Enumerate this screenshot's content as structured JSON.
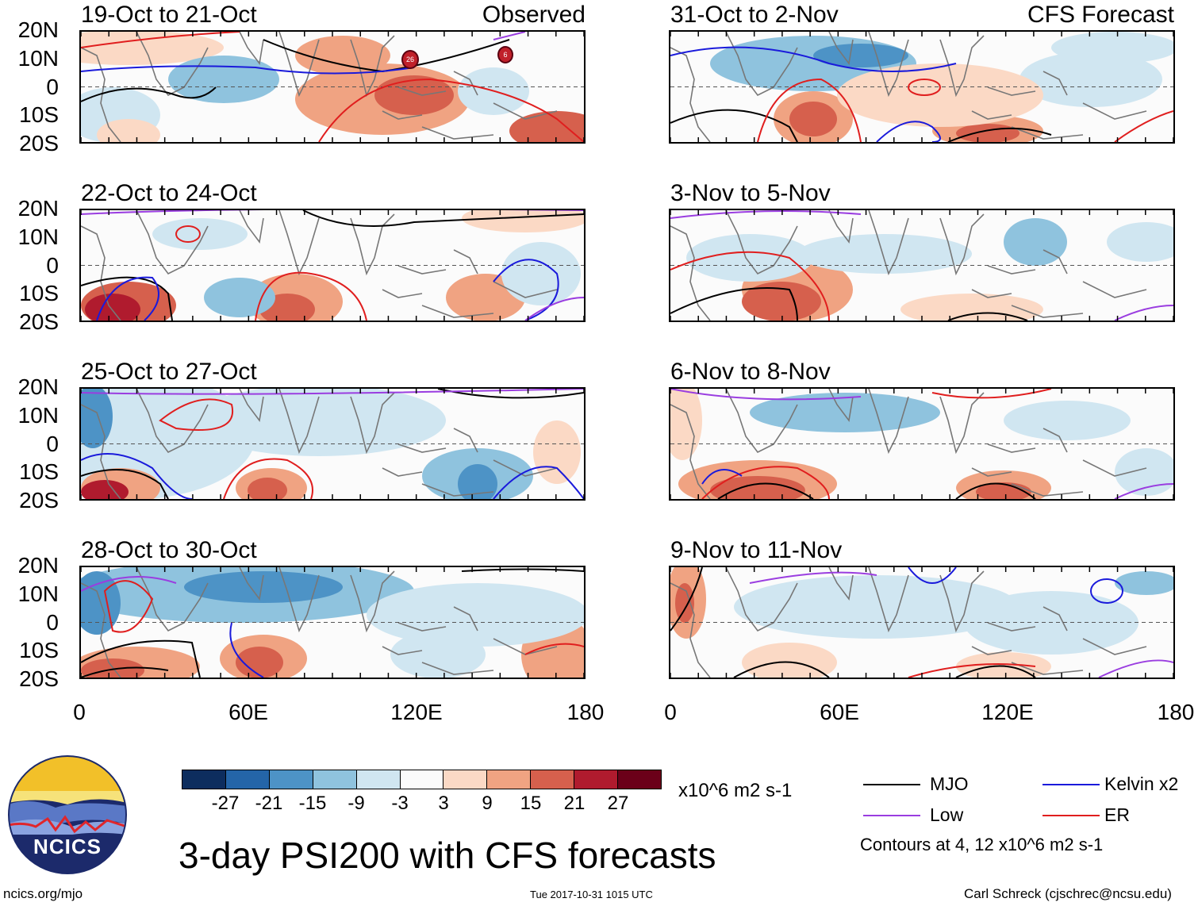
{
  "header": {
    "left_tag": "Observed",
    "right_tag": "CFS Forecast"
  },
  "panels": [
    {
      "title": "19-Oct to 21-Oct",
      "source": "observed",
      "tint": "mixed-red"
    },
    {
      "title": "22-Oct to 24-Oct",
      "source": "observed",
      "tint": "mixed-light"
    },
    {
      "title": "25-Oct to 27-Oct",
      "source": "observed",
      "tint": "blue"
    },
    {
      "title": "28-Oct to 30-Oct",
      "source": "observed",
      "tint": "blue-north"
    },
    {
      "title": "31-Oct to 2-Nov",
      "source": "forecast",
      "tint": "mixed-blue"
    },
    {
      "title": "3-Nov to 5-Nov",
      "source": "forecast",
      "tint": "mixed-light"
    },
    {
      "title": "6-Nov to 8-Nov",
      "source": "forecast",
      "tint": "red-south"
    },
    {
      "title": "9-Nov to 11-Nov",
      "source": "forecast",
      "tint": "light"
    }
  ],
  "y_axis": {
    "labels": [
      "20N",
      "10N",
      "0",
      "10S",
      "20S"
    ],
    "lat_values": [
      20,
      10,
      0,
      -10,
      -20
    ]
  },
  "x_axis": {
    "labels": [
      "0",
      "60E",
      "120E",
      "180"
    ],
    "lon_values": [
      0,
      60,
      120,
      180
    ]
  },
  "colorbar": {
    "colors": [
      "#0d2d5e",
      "#2465a8",
      "#4d93c6",
      "#8fc3de",
      "#d0e6f1",
      "#fbfbfb",
      "#fbd9c5",
      "#f0a382",
      "#d6604d",
      "#b01b2e",
      "#6b0019"
    ],
    "tick_labels": [
      "-27",
      "-21",
      "-15",
      "-9",
      "-3",
      "3",
      "9",
      "15",
      "21",
      "27"
    ],
    "units": "x10^6 m2 s-1"
  },
  "legend": {
    "items": [
      {
        "label": "MJO",
        "color": "#000000"
      },
      {
        "label": "Kelvin x2",
        "color": "#1a1adb"
      },
      {
        "label": "Low",
        "color": "#9a3de0"
      },
      {
        "label": "ER",
        "color": "#e01e1e"
      }
    ],
    "note": "Contours at 4, 12 x10^6 m2 s-1"
  },
  "main_title": "3-day PSI200 with CFS forecasts",
  "logo_text": "NCICS",
  "footer": {
    "url": "ncics.org/mjo",
    "timestamp": "Tue 2017-10-31 1015 UTC",
    "credit": "Carl Schreck (cjschrec@ncsu.edu)"
  },
  "storm_markers": [
    "26",
    "6"
  ]
}
